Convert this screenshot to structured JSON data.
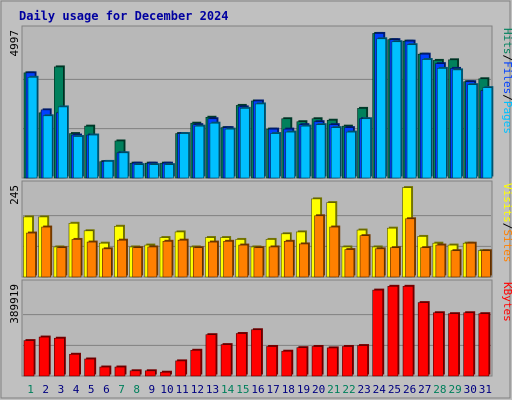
{
  "title": "Daily usage for December 2024",
  "colors": {
    "background": "#c0c0c0",
    "panel": "#b8b8b8",
    "border": "#808080",
    "gridline": "#808080",
    "title": "#0000a0",
    "hits": "#00805c",
    "files": "#0040ff",
    "pages": "#00c0ff",
    "visits": "#ffff00",
    "sites": "#ff8000",
    "kbytes": "#ff0000",
    "weekday_label": "#000080",
    "weekend_label": "#00805c"
  },
  "chart_data": [
    {
      "type": "bar",
      "panel": "hits-files-pages",
      "x": [
        1,
        2,
        3,
        4,
        5,
        6,
        7,
        8,
        9,
        10,
        11,
        12,
        13,
        14,
        15,
        16,
        17,
        18,
        19,
        20,
        21,
        22,
        23,
        24,
        25,
        26,
        27,
        28,
        29,
        30,
        31
      ],
      "weekend_days": [
        1,
        7,
        8,
        14,
        15,
        21,
        22,
        28,
        29
      ],
      "ymax_label": "4997",
      "ymax": 4997,
      "legend": [
        "Pages",
        "/",
        "Files",
        "/",
        "Hits"
      ],
      "series": [
        {
          "name": "Hits",
          "values": [
            3550,
            2200,
            3750,
            1500,
            1750,
            550,
            1250,
            500,
            500,
            500,
            1500,
            1850,
            2050,
            1700,
            2450,
            2600,
            1650,
            2000,
            1900,
            2000,
            1950,
            1750,
            2350,
            4880,
            4670,
            4620,
            4180,
            3970,
            3990,
            3250,
            3350
          ]
        },
        {
          "name": "Files",
          "values": [
            3550,
            2300,
            2200,
            1450,
            1450,
            550,
            850,
            500,
            500,
            500,
            1500,
            1800,
            2000,
            1700,
            2400,
            2600,
            1650,
            1650,
            1800,
            1900,
            1800,
            1700,
            2000,
            4880,
            4670,
            4620,
            4180,
            3860,
            3700,
            3250,
            2950
          ]
        },
        {
          "name": "Pages",
          "values": [
            3400,
            2100,
            2400,
            1400,
            1450,
            560,
            850,
            450,
            450,
            450,
            1500,
            1750,
            1850,
            1650,
            2350,
            2500,
            1500,
            1550,
            1750,
            1800,
            1700,
            1550,
            2000,
            4700,
            4600,
            4500,
            4000,
            3700,
            3650,
            3150,
            3050
          ]
        }
      ]
    },
    {
      "type": "bar",
      "panel": "visits-sites",
      "x": [
        1,
        2,
        3,
        4,
        5,
        6,
        7,
        8,
        9,
        10,
        11,
        12,
        13,
        14,
        15,
        16,
        17,
        18,
        19,
        20,
        21,
        22,
        23,
        24,
        25,
        26,
        27,
        28,
        29,
        30,
        31
      ],
      "ymax_label": "245",
      "ymax": 245,
      "legend": [
        "Sites",
        "/",
        "Visits"
      ],
      "series": [
        {
          "name": "Visits",
          "values": [
            160,
            160,
            80,
            143,
            123,
            90,
            135,
            80,
            85,
            105,
            120,
            80,
            105,
            105,
            100,
            80,
            100,
            115,
            120,
            208,
            198,
            80,
            125,
            80,
            130,
            238,
            108,
            90,
            85,
            90,
            70
          ]
        },
        {
          "name": "Sites",
          "values": [
            117,
            133,
            78,
            100,
            93,
            75,
            98,
            78,
            80,
            95,
            98,
            78,
            93,
            95,
            85,
            78,
            80,
            95,
            88,
            163,
            133,
            73,
            110,
            75,
            78,
            155,
            78,
            85,
            70,
            90,
            70
          ]
        }
      ]
    },
    {
      "type": "bar",
      "panel": "kbytes",
      "x": [
        1,
        2,
        3,
        4,
        5,
        6,
        7,
        8,
        9,
        10,
        11,
        12,
        13,
        14,
        15,
        16,
        17,
        18,
        19,
        20,
        21,
        22,
        23,
        24,
        25,
        26,
        27,
        28,
        29,
        30,
        31
      ],
      "ymax_label": "389919",
      "ymax": 389919,
      "legend": [
        "KBytes"
      ],
      "series": [
        {
          "name": "KBytes",
          "values": [
            150000,
            165000,
            160000,
            92000,
            72000,
            38000,
            38000,
            22000,
            22000,
            16000,
            64000,
            109000,
            175000,
            133000,
            180000,
            196000,
            125000,
            105000,
            120000,
            125000,
            119000,
            125000,
            129000,
            364000,
            380000,
            380000,
            311000,
            268000,
            264000,
            268000,
            264000
          ]
        }
      ]
    }
  ]
}
